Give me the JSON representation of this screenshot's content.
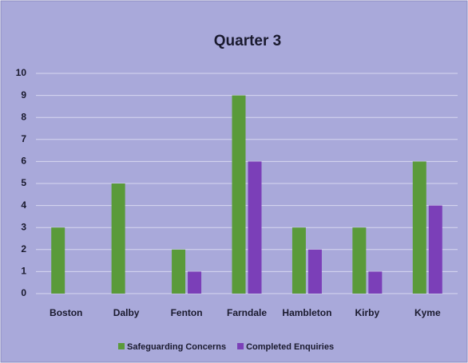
{
  "chart_data": {
    "type": "bar",
    "title": "Quarter 3",
    "categories": [
      "Boston",
      "Dalby",
      "Fenton",
      "Farndale",
      "Hambleton",
      "Kirby",
      "Kyme"
    ],
    "series": [
      {
        "name": "Safeguarding Concerns",
        "color": "#5a9a3a",
        "values": [
          3,
          5,
          2,
          9,
          3,
          3,
          6
        ]
      },
      {
        "name": "Completed Enquiries",
        "color": "#7b3fb8",
        "values": [
          0,
          0,
          1,
          6,
          2,
          1,
          4
        ]
      }
    ],
    "ylim": [
      0,
      10
    ],
    "yticks": [
      0,
      1,
      2,
      3,
      4,
      5,
      6,
      7,
      8,
      9,
      10
    ],
    "grid": true,
    "legend": "bottom"
  }
}
